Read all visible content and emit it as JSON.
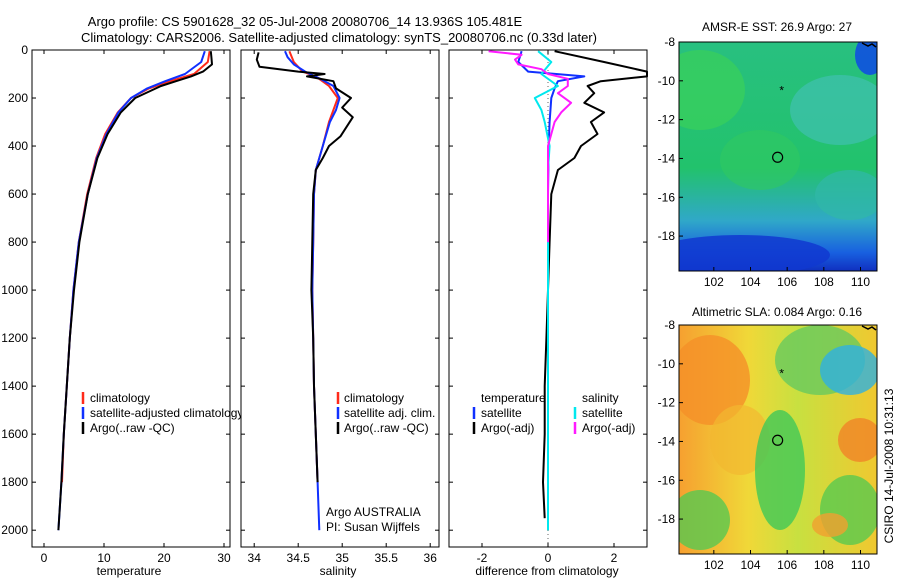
{
  "header": {
    "title_line1": "Argo profile: CS 5901628_32 05-Jul-2008 20080706_14 13.936S 105.481E",
    "title_line2": "Climatology: CARS2006. Satellite-adjusted climatology: synTS_20080706.nc (0.33d later)"
  },
  "sidebar_text": "CSIRO 14-Jul-2008 10:31:13",
  "colors": {
    "climatology": "#ff2a1a",
    "satellite": "#1030ff",
    "argo": "#000000",
    "satellite_salinity": "#00e8ee",
    "argo_salinity": "#ff1aff"
  },
  "chart_data": [
    {
      "type": "line",
      "panel": "temperature",
      "xlabel": "temperature",
      "ylabel": "",
      "xlim": [
        -2,
        31
      ],
      "ylim": [
        2070,
        0
      ],
      "x_ticks": [
        0,
        10,
        20,
        30
      ],
      "y_ticks": [
        0,
        200,
        400,
        600,
        800,
        1000,
        1200,
        1400,
        1600,
        1800,
        2000
      ],
      "legend": [
        "climatology",
        "satellite-adjusted climatology",
        "Argo(..raw -QC)"
      ],
      "series": [
        {
          "name": "climatology",
          "color": "#ff2a1a",
          "depth": [
            5,
            50,
            100,
            130,
            160,
            200,
            260,
            350,
            450,
            600,
            800,
            1000,
            1200,
            1400,
            1600,
            1800
          ],
          "values": [
            27.6,
            27.3,
            25,
            21,
            17.5,
            14.5,
            12.3,
            10.2,
            8.7,
            7.2,
            5.8,
            4.9,
            4.3,
            3.8,
            3.3,
            3.0
          ]
        },
        {
          "name": "satellite-adjusted climatology",
          "color": "#1030ff",
          "depth": [
            5,
            50,
            100,
            130,
            160,
            200,
            260,
            350,
            450,
            600,
            800,
            1000,
            1200,
            1400,
            1600,
            1800,
            2000
          ],
          "values": [
            26.8,
            26.2,
            23.5,
            20.2,
            17.2,
            14.5,
            12.4,
            10.4,
            8.8,
            7.3,
            5.8,
            4.9,
            4.3,
            3.8,
            3.3,
            2.9,
            2.4
          ]
        },
        {
          "name": "Argo(..raw -QC)",
          "color": "#000000",
          "depth": [
            5,
            30,
            60,
            90,
            110,
            130,
            150,
            200,
            260,
            350,
            450,
            600,
            800,
            1000,
            1200,
            1400,
            1600,
            1800,
            2000
          ],
          "values": [
            27.8,
            27.9,
            28.0,
            26.5,
            24.5,
            22,
            19.5,
            15.2,
            12.8,
            10.6,
            8.9,
            7.3,
            5.9,
            5.0,
            4.3,
            3.8,
            3.3,
            2.9,
            2.4
          ]
        }
      ]
    },
    {
      "type": "line",
      "panel": "salinity",
      "xlabel": "salinity",
      "xlim": [
        33.85,
        36.1
      ],
      "ylim": [
        2070,
        0
      ],
      "x_ticks": [
        34,
        34.5,
        35,
        35.5,
        36
      ],
      "legend": [
        "climatology",
        "satellite adj. clim.",
        "Argo(..raw -QC)"
      ],
      "annotation_line1": "Argo AUSTRALIA",
      "annotation_line2": "PI: Susan Wijffels",
      "series": [
        {
          "name": "climatology",
          "color": "#ff2a1a",
          "depth": [
            5,
            50,
            90,
            110,
            150,
            200,
            250,
            300,
            400,
            500,
            600,
            800,
            1000,
            1200,
            1400,
            1600,
            1800
          ],
          "values": [
            34.4,
            34.45,
            34.55,
            34.7,
            34.85,
            34.95,
            34.9,
            34.85,
            34.78,
            34.7,
            34.68,
            34.67,
            34.66,
            34.67,
            34.68,
            34.7,
            34.72
          ]
        },
        {
          "name": "satellite adj. clim.",
          "color": "#1030ff",
          "depth": [
            5,
            30,
            60,
            90,
            120,
            150,
            200,
            250,
            300,
            400,
            500,
            600,
            800,
            1000,
            1200,
            1400,
            1600,
            1800,
            2000
          ],
          "values": [
            34.35,
            34.38,
            34.45,
            34.58,
            34.75,
            34.9,
            34.97,
            34.93,
            34.86,
            34.78,
            34.7,
            34.68,
            34.67,
            34.66,
            34.67,
            34.68,
            34.7,
            34.72,
            34.74
          ]
        },
        {
          "name": "Argo(..raw -QC)",
          "color": "#000000",
          "depth": [
            10,
            40,
            70,
            90,
            100,
            110,
            130,
            160,
            200,
            240,
            280,
            320,
            360,
            400,
            450,
            500,
            600,
            800,
            1000,
            1200,
            1400,
            1600,
            1800
          ],
          "values": [
            34.05,
            34.03,
            34.06,
            34.5,
            34.8,
            34.6,
            34.9,
            34.93,
            35.1,
            35.0,
            35.12,
            35.05,
            34.98,
            34.85,
            34.78,
            34.7,
            34.67,
            34.66,
            34.65,
            34.67,
            34.68,
            34.7,
            34.72
          ]
        }
      ]
    },
    {
      "type": "line",
      "panel": "difference",
      "xlabel": "difference from climatology",
      "xlim": [
        -3,
        3
      ],
      "ylim": [
        2070,
        0
      ],
      "x_ticks": [
        -2,
        0,
        2
      ],
      "legend_left_title": "temperature",
      "legend_left": [
        "satellite",
        "Argo(-adj)"
      ],
      "legend_right_title": "salinity",
      "legend_right": [
        "satellite",
        "Argo(-adj)"
      ],
      "series": [
        {
          "name": "satellite",
          "group": "temperature",
          "color": "#1030ff",
          "depth": [
            5,
            50,
            90,
            110,
            130,
            160,
            200,
            300,
            400,
            600,
            1000,
            1400,
            1800
          ],
          "values": [
            -0.8,
            -0.9,
            -0.6,
            1.1,
            0.3,
            0.2,
            0.1,
            0.05,
            0.02,
            0.0,
            0.0,
            0.0,
            0.0
          ]
        },
        {
          "name": "Argo(-adj)",
          "group": "temperature",
          "color": "#000000",
          "depth": [
            5,
            50,
            90,
            110,
            130,
            150,
            180,
            220,
            260,
            300,
            350,
            400,
            450,
            500,
            600,
            800,
            1000,
            1200,
            1400,
            1600,
            1800,
            1950
          ],
          "values": [
            0.2,
            1.7,
            3.0,
            3.0,
            1.6,
            1.2,
            1.4,
            1.1,
            1.7,
            1.3,
            1.5,
            1.0,
            0.8,
            0.3,
            0.1,
            0.05,
            0.0,
            -0.05,
            -0.1,
            -0.1,
            -0.15,
            -0.1
          ]
        },
        {
          "name": "satellite",
          "group": "salinity",
          "color": "#00e8ee",
          "depth": [
            5,
            50,
            100,
            150,
            200,
            250,
            300,
            400,
            500,
            700,
            1000,
            1400,
            1800,
            2000
          ],
          "values": [
            -0.3,
            0.1,
            -0.2,
            0.3,
            -0.4,
            -0.2,
            -0.1,
            0.05,
            0.0,
            0.0,
            0.0,
            0.0,
            0.0,
            0.0
          ]
        },
        {
          "name": "Argo(-adj)",
          "group": "salinity",
          "color": "#ff1aff",
          "depth": [
            5,
            20,
            40,
            60,
            80,
            100,
            120,
            150,
            180,
            220,
            260,
            300,
            350,
            400,
            500,
            600,
            800
          ],
          "values": [
            -1.8,
            -0.8,
            -1.0,
            -0.9,
            -0.2,
            0.0,
            0.6,
            0.6,
            0.3,
            0.7,
            0.4,
            0.2,
            0.1,
            0.0,
            0.0,
            0.0,
            0.0
          ]
        }
      ]
    },
    {
      "type": "heatmap",
      "panel": "map-sst",
      "title": "AMSR-E SST: 26.9 Argo: 27",
      "xlim": [
        100.1,
        110.9
      ],
      "ylim": [
        -19.8,
        -8
      ],
      "x_ticks": [
        102,
        104,
        106,
        108,
        110
      ],
      "y_ticks": [
        -8,
        -10,
        -12,
        -14,
        -16,
        -18
      ],
      "argo_position": [
        105.48,
        -13.94
      ],
      "prev_position": [
        105.7,
        -10.5
      ],
      "palette": "green-blue"
    },
    {
      "type": "heatmap",
      "panel": "map-sla",
      "title": "Altimetric SLA: 0.084 Argo: 0.16",
      "xlim": [
        100.1,
        110.9
      ],
      "ylim": [
        -19.8,
        -8
      ],
      "x_ticks": [
        102,
        104,
        106,
        108,
        110
      ],
      "y_ticks": [
        -8,
        -10,
        -12,
        -14,
        -16,
        -18
      ],
      "argo_position": [
        105.48,
        -13.94
      ],
      "prev_position": [
        105.7,
        -10.5
      ],
      "palette": "yellow-orange-green"
    }
  ]
}
